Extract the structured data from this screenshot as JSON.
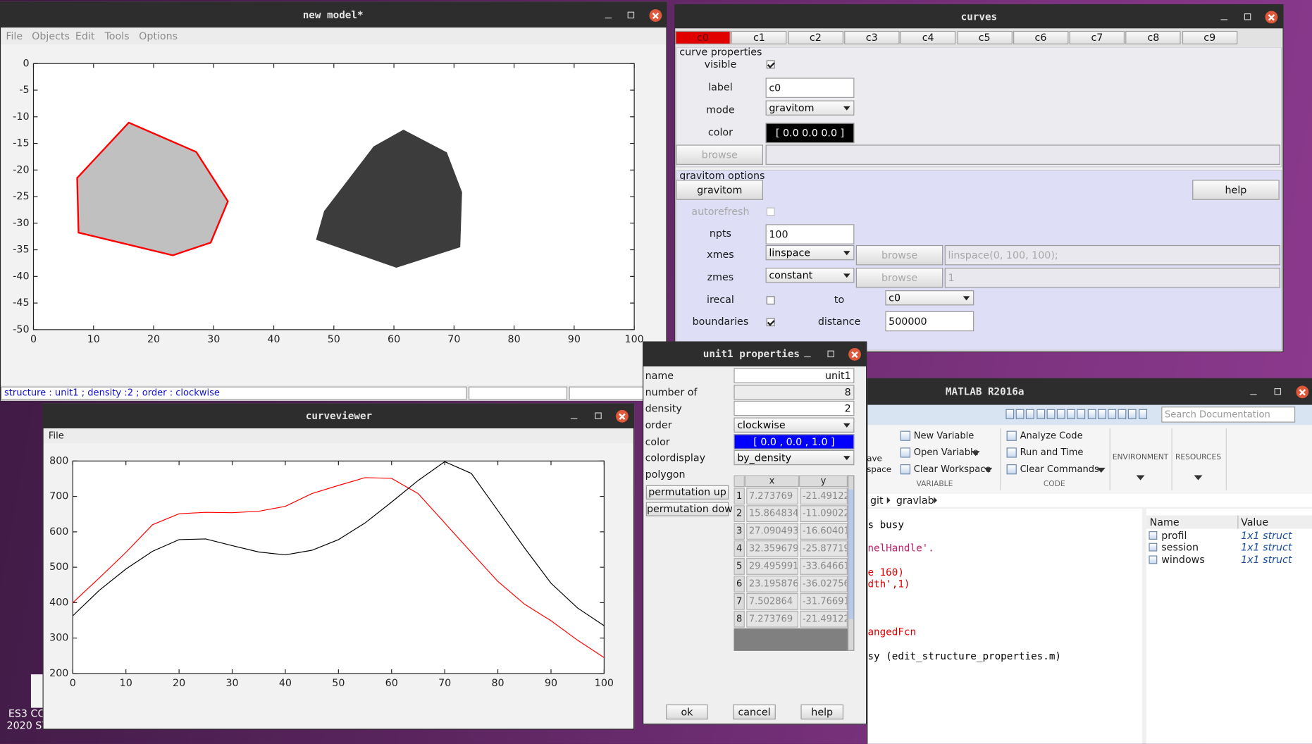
{
  "desktop": {
    "label_1": "ES3 CO",
    "label_2": "2020 SY"
  },
  "model_window": {
    "title": "new model*",
    "menu": [
      "File",
      "Objects",
      "Edit",
      "Tools",
      "Options"
    ],
    "status": "structure : unit1 ; density :2 ; order : clockwise"
  },
  "curves_window": {
    "title": "curves",
    "tabs": [
      "c0",
      "c1",
      "c2",
      "c3",
      "c4",
      "c5",
      "c6",
      "c7",
      "c8",
      "c9"
    ],
    "curve_properties": {
      "heading": "curve properties",
      "visible": "visible",
      "label": "label",
      "label_value": "c0",
      "mode": "mode",
      "mode_value": "gravitom",
      "color": "color",
      "color_value": "[ 0.0  0.0  0.0 ]",
      "browse": "browse"
    },
    "gravitom_options": {
      "heading": "gravitom options",
      "gravitom_button": "gravitom",
      "help_button": "help",
      "autorefresh": "autorefresh",
      "npts": "npts",
      "npts_value": "100",
      "xmes": "xmes",
      "xmes_value": "linspace",
      "xmes_browse": "browse",
      "xmes_expr": "linspace(0, 100, 100);",
      "zmes": "zmes",
      "zmes_value": "constant",
      "zmes_browse": "browse",
      "zmes_expr": "1",
      "irecal": "irecal",
      "to": "to",
      "to_value": "c0",
      "boundaries": "boundaries",
      "distance": "distance",
      "distance_value": "500000"
    }
  },
  "unit_dialog": {
    "title": "unit1 properties",
    "fields": [
      {
        "label": "name",
        "value": "unit1"
      },
      {
        "label": "number of",
        "value": "8"
      },
      {
        "label": "density",
        "value": "2"
      },
      {
        "label": "order",
        "value": "clockwise"
      },
      {
        "label": "color",
        "value": "[ 0.0 , 0.0 , 1.0 ]"
      },
      {
        "label": "colordisplay",
        "value": "by_density"
      },
      {
        "label": "polygon"
      }
    ],
    "permutation_up": "permutation up",
    "permutation_down": "permutation down",
    "table": {
      "columns": [
        "x",
        "y"
      ],
      "rows": [
        [
          "1",
          "7.273769",
          "-21.49122"
        ],
        [
          "2",
          "15.864834",
          "-11.09022"
        ],
        [
          "3",
          "27.090493",
          "-16.60401"
        ],
        [
          "4",
          "32.359679",
          "-25.87719"
        ],
        [
          "5",
          "29.495991",
          "-33.64661"
        ],
        [
          "6",
          "23.195876",
          "-36.02756"
        ],
        [
          "7",
          "7.502864",
          "-31.76691"
        ],
        [
          "8",
          "7.273769",
          "-21.49122"
        ]
      ]
    },
    "buttons": [
      "ok",
      "cancel",
      "help"
    ]
  },
  "curveviewer": {
    "title": "curveviewer",
    "menu": [
      "File"
    ]
  },
  "matlab": {
    "title": "MATLAB R2016a",
    "search": "Search Documentation",
    "file_section_partial": [
      "ave",
      "space"
    ],
    "variable_buttons": [
      "New Variable",
      "Open Variable",
      "Clear Workspace"
    ],
    "variable_section": "VARIABLE",
    "code_buttons": [
      "Analyze Code",
      "Run and Time",
      "Clear Commands"
    ],
    "code_section": "CODE",
    "environment": "ENVIRONMENT",
    "resources": "RESOURCES",
    "path": [
      "git",
      "gravlab"
    ],
    "command_lines": [
      {
        "text": "s busy",
        "color": "#000000"
      },
      {
        "text": "nelHandle'.",
        "color": "#c0206a"
      },
      {
        "text": "e 160)",
        "color": "#e00000"
      },
      {
        "text": "dth',1)",
        "color": "#e00000"
      },
      {
        "text": "angedFcn",
        "color": "#e00000"
      },
      {
        "text": "sy (edit_structure_properties.m)",
        "color": "#000000"
      }
    ],
    "workspace": {
      "columns": [
        "Name",
        "Value"
      ],
      "rows": [
        [
          "profil",
          "1x1 struct"
        ],
        [
          "session",
          "1x1 struct"
        ],
        [
          "windows",
          "1x1 struct"
        ]
      ]
    }
  },
  "chart_data": [
    {
      "type": "polygon",
      "xlim": [
        0,
        100
      ],
      "ylim": [
        -50,
        0
      ],
      "xticks": [
        0,
        10,
        20,
        30,
        40,
        50,
        60,
        70,
        80,
        90,
        100
      ],
      "yticks": [
        0,
        -5,
        -10,
        -15,
        -20,
        -25,
        -30,
        -35,
        -40,
        -45,
        -50
      ],
      "polygons": [
        {
          "color": "#ff0000",
          "fill": "#c0c0c0",
          "x": [
            7.273769,
            15.864834,
            27.090493,
            32.359679,
            29.495991,
            23.195876,
            7.502864,
            7.273769
          ],
          "y": [
            -21.49122,
            -11.09022,
            -16.60401,
            -25.87719,
            -33.64661,
            -36.02756,
            -31.76691,
            -21.49122
          ]
        },
        {
          "color": "#3c3c3c",
          "fill": "#3c3c3c",
          "x": [
            61.6,
            68.7,
            71.2,
            70.9,
            60.4,
            47.2,
            48.5,
            56.7
          ],
          "y": [
            -12.6,
            -16.8,
            -24.2,
            -34.4,
            -38.2,
            -33.0,
            -27.8,
            -15.7
          ]
        }
      ]
    },
    {
      "type": "line",
      "xlim": [
        0,
        100
      ],
      "ylim": [
        200,
        800
      ],
      "xticks": [
        0,
        10,
        20,
        30,
        40,
        50,
        60,
        70,
        80,
        90,
        100
      ],
      "yticks": [
        200,
        300,
        400,
        500,
        600,
        700,
        800
      ],
      "x": [
        0,
        5,
        10,
        15,
        20,
        25,
        30,
        35,
        40,
        45,
        50,
        55,
        60,
        65,
        70,
        75,
        80,
        85,
        90,
        95,
        100
      ],
      "series": [
        {
          "color": "#ff0000",
          "values": [
            400,
            470,
            542,
            620,
            651,
            655,
            654,
            658,
            672,
            708,
            731,
            753,
            751,
            708,
            625,
            542,
            460,
            396,
            349,
            294,
            245
          ]
        },
        {
          "color": "#000000",
          "values": [
            363,
            435,
            495,
            545,
            578,
            580,
            561,
            543,
            535,
            548,
            578,
            625,
            684,
            745,
            798,
            765,
            660,
            555,
            455,
            385,
            335
          ]
        }
      ]
    }
  ]
}
